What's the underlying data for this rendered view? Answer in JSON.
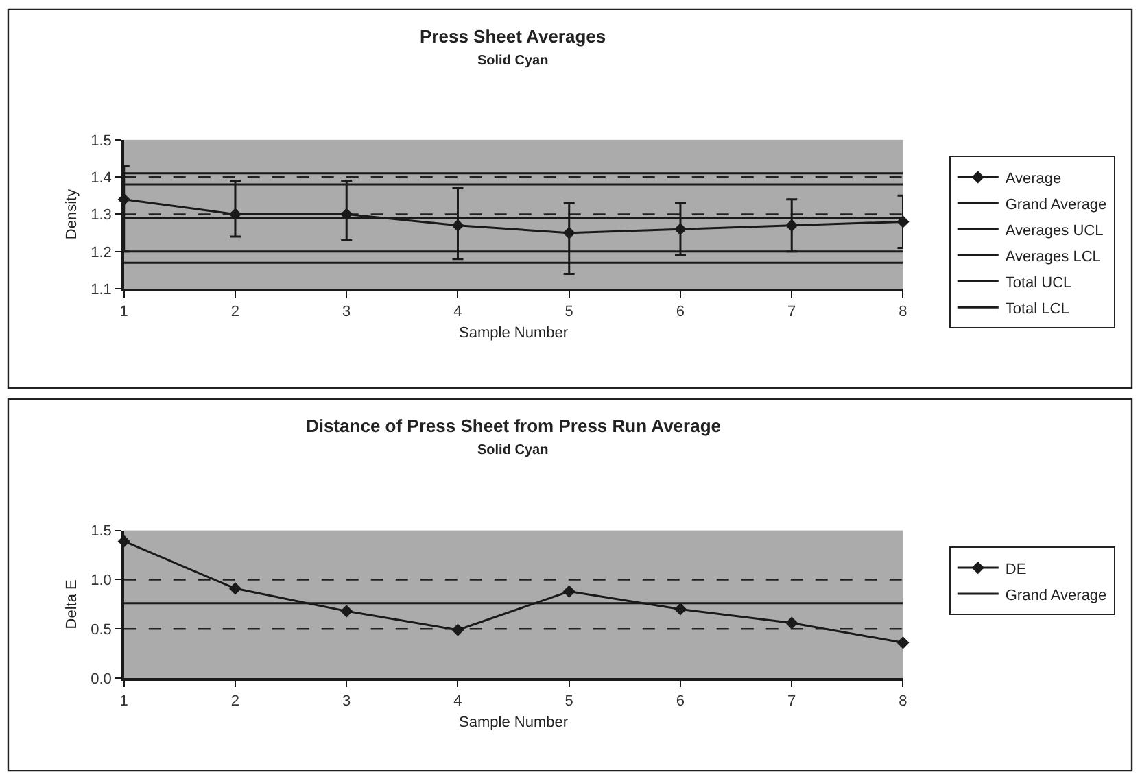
{
  "chart_data": [
    {
      "type": "line",
      "title": "Press Sheet Averages",
      "subtitle": "Solid Cyan",
      "xlabel": "Sample Number",
      "ylabel": "Density",
      "x": [
        1,
        2,
        3,
        4,
        5,
        6,
        7,
        8
      ],
      "xlim": [
        1,
        8
      ],
      "xticks": [
        1,
        2,
        3,
        4,
        5,
        6,
        7,
        8
      ],
      "ylim": [
        1.1,
        1.5
      ],
      "yticks": [
        1.1,
        1.2,
        1.3,
        1.4,
        1.5
      ],
      "legend": "right",
      "ref_lines": [
        {
          "axis": "y",
          "value": 1.3,
          "line_style": "dashed",
          "color": "#222222"
        },
        {
          "axis": "y",
          "value": 1.4,
          "line_style": "dashed",
          "color": "#222222"
        }
      ],
      "series": [
        {
          "name": "Average",
          "color": "#1a1a1a",
          "marker": "diamond",
          "values": [
            1.34,
            1.3,
            1.3,
            1.27,
            1.25,
            1.26,
            1.27,
            1.28
          ],
          "errors": [
            [
              1.2,
              1.43
            ],
            [
              1.24,
              1.39
            ],
            [
              1.23,
              1.39
            ],
            [
              1.18,
              1.37
            ],
            [
              1.14,
              1.33
            ],
            [
              1.19,
              1.33
            ],
            [
              1.2,
              1.34
            ],
            [
              1.21,
              1.35
            ]
          ]
        },
        {
          "name": "Grand Average",
          "color": "#1a1a1a",
          "values": [
            1.29,
            1.29,
            1.29,
            1.29,
            1.29,
            1.29,
            1.29,
            1.29
          ]
        },
        {
          "name": "Averages UCL",
          "color": "#1a1a1a",
          "values": [
            1.38,
            1.38,
            1.38,
            1.38,
            1.38,
            1.38,
            1.38,
            1.38
          ]
        },
        {
          "name": "Averages LCL",
          "color": "#1a1a1a",
          "values": [
            1.2,
            1.2,
            1.2,
            1.2,
            1.2,
            1.2,
            1.2,
            1.2
          ]
        },
        {
          "name": "Total UCL",
          "color": "#1a1a1a",
          "values": [
            1.41,
            1.41,
            1.41,
            1.41,
            1.41,
            1.41,
            1.41,
            1.41
          ]
        },
        {
          "name": "Total LCL",
          "color": "#1a1a1a",
          "values": [
            1.17,
            1.17,
            1.17,
            1.17,
            1.17,
            1.17,
            1.17,
            1.17
          ]
        }
      ]
    },
    {
      "type": "line",
      "title": "Distance of Press Sheet from Press Run Average",
      "subtitle": "Solid Cyan",
      "xlabel": "Sample Number",
      "ylabel": "Delta E",
      "x": [
        1,
        2,
        3,
        4,
        5,
        6,
        7,
        8
      ],
      "xlim": [
        1,
        8
      ],
      "xticks": [
        1,
        2,
        3,
        4,
        5,
        6,
        7,
        8
      ],
      "ylim": [
        0,
        1.5
      ],
      "yticks": [
        {
          "value": 0,
          "label": "0.0"
        },
        {
          "value": 0.5,
          "label": "0.5"
        },
        {
          "value": 1,
          "label": "1.0"
        },
        {
          "value": 1.5,
          "label": "1.5"
        }
      ],
      "legend": "right",
      "ref_lines": [
        {
          "axis": "y",
          "value": 0.5,
          "line_style": "dashed",
          "color": "#222222"
        },
        {
          "axis": "y",
          "value": 1.0,
          "line_style": "dashed",
          "color": "#222222"
        }
      ],
      "series": [
        {
          "name": "DE",
          "color": "#1a1a1a",
          "marker": "diamond",
          "values": [
            1.39,
            0.91,
            0.68,
            0.49,
            0.88,
            0.7,
            0.56,
            0.36
          ]
        },
        {
          "name": "Grand Average",
          "color": "#1a1a1a",
          "values": [
            0.76,
            0.76,
            0.76,
            0.76,
            0.76,
            0.76,
            0.76,
            0.76
          ]
        }
      ]
    }
  ]
}
